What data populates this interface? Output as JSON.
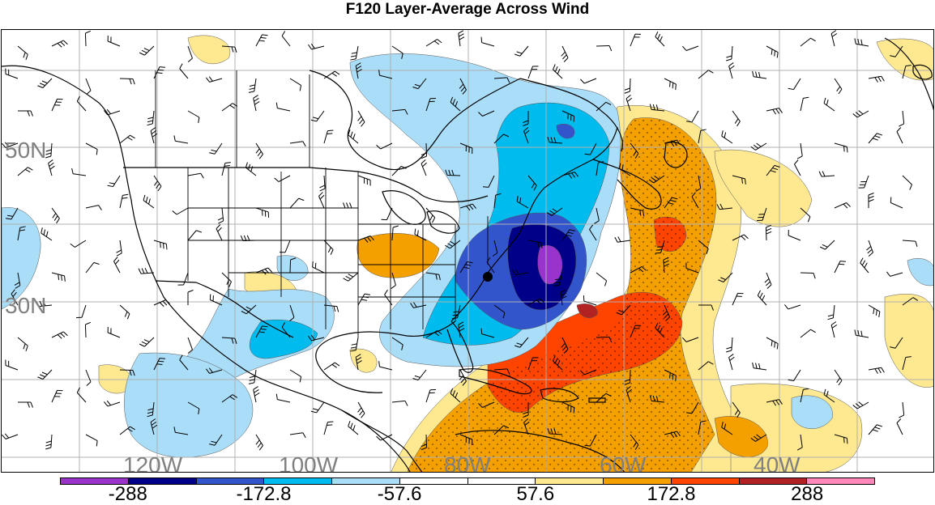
{
  "title": "F120 Layer-Average Across Wind",
  "map": {
    "lat_labels": [
      "50N",
      "30N"
    ],
    "lon_labels": [
      "120W",
      "100W",
      "80W",
      "60W",
      "40W"
    ],
    "colors": {
      "neg4": "#9933cc",
      "neg3": "#000088",
      "neg2": "#3355cc",
      "neg1": "#00bbee",
      "neg0": "#aaddf8",
      "pos0": "#ffe990",
      "pos1": "#f4a000",
      "pos2": "#ff4400",
      "pos3": "#b22222",
      "pos4": "#ff88bb",
      "line": "#000000",
      "grid": "#b0b0b0"
    }
  },
  "colorbar": {
    "colors": [
      "#9933cc",
      "#000088",
      "#3355cc",
      "#00bbee",
      "#aaddf8",
      "#ffffff",
      "#ffffff",
      "#ffe990",
      "#f4a000",
      "#ff4400",
      "#b22222",
      "#ff88bb"
    ],
    "labels": [
      "-288",
      "-172.8",
      "-57.6",
      "57.6",
      "172.8",
      "288"
    ]
  }
}
